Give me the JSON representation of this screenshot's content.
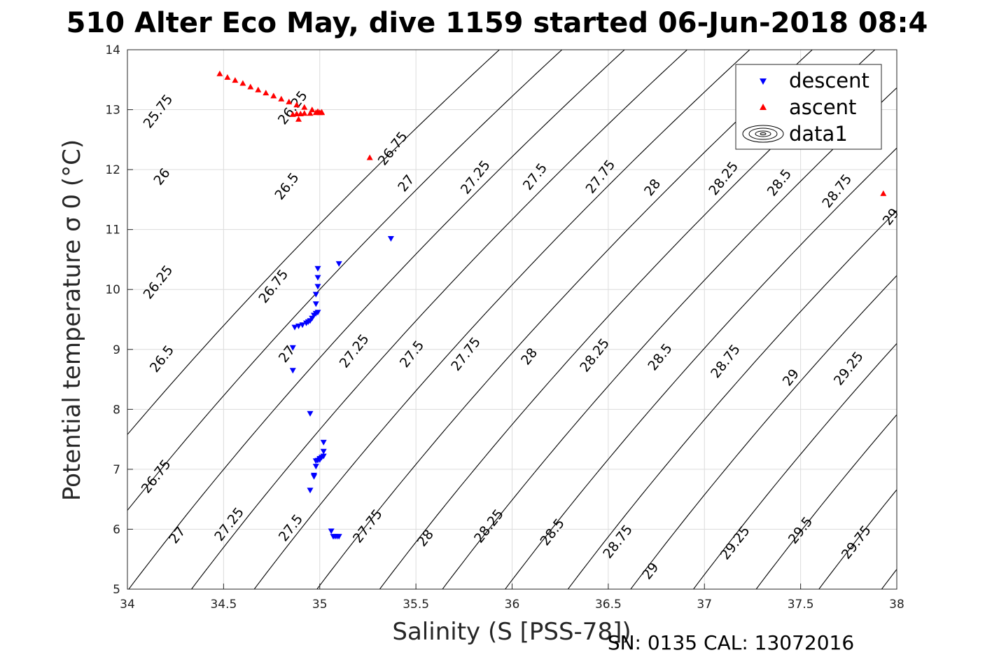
{
  "figure": {
    "title": "510 Alter Eco May, dive 1159 started 06-Jun-2018 08:4",
    "footer": "SN: 0135  CAL: 13072016"
  },
  "chart_data": {
    "type": "scatter",
    "title": "510 Alter Eco May, dive 1159 started 06-Jun-2018 08:4",
    "xlabel": "Salinity (S [PSS-78])",
    "ylabel": "Potential temperature σ 0 (°C)",
    "xlim": [
      34,
      38
    ],
    "ylim": [
      5,
      14
    ],
    "xticks": [
      "34",
      "34.5",
      "35",
      "35.5",
      "36",
      "36.5",
      "37",
      "37.5",
      "38"
    ],
    "yticks": [
      "5",
      "6",
      "7",
      "8",
      "9",
      "10",
      "11",
      "12",
      "13",
      "14"
    ],
    "grid": true,
    "legend": {
      "placement": "top-right",
      "entries": [
        "descent",
        "ascent",
        "data1"
      ]
    },
    "colors": {
      "descent": "#0000ff",
      "ascent": "#ff0000",
      "contour": "#000000",
      "grid": "#dcdcdc"
    },
    "series": [
      {
        "name": "descent",
        "marker": "triangle-down",
        "x": [
          35.37,
          35.1,
          34.99,
          34.99,
          34.99,
          34.98,
          34.98,
          34.99,
          34.98,
          34.97,
          34.96,
          34.95,
          34.94,
          34.93,
          34.91,
          34.89,
          34.87,
          34.86,
          34.86,
          34.95,
          35.02,
          35.02,
          35.02,
          35.01,
          35.0,
          35.0,
          34.99,
          34.98,
          34.98,
          34.97,
          34.97,
          34.95,
          35.06,
          35.07,
          35.08,
          35.09,
          35.1
        ],
        "y": [
          10.85,
          10.43,
          10.35,
          10.2,
          10.05,
          9.92,
          9.76,
          9.62,
          9.6,
          9.57,
          9.52,
          9.48,
          9.46,
          9.44,
          9.41,
          9.39,
          9.37,
          9.03,
          8.65,
          7.93,
          7.45,
          7.3,
          7.22,
          7.2,
          7.18,
          7.16,
          7.15,
          7.14,
          7.05,
          6.9,
          6.88,
          6.65,
          5.97,
          5.88,
          5.88,
          5.88,
          5.88
        ]
      },
      {
        "name": "ascent",
        "marker": "triangle-up",
        "x": [
          34.48,
          34.52,
          34.56,
          34.6,
          34.64,
          34.68,
          34.72,
          34.76,
          34.8,
          34.84,
          34.88,
          34.92,
          34.96,
          34.99,
          35.01,
          35.01,
          35.0,
          34.98,
          34.95,
          34.92,
          34.9,
          34.88,
          34.86,
          34.89,
          35.26,
          37.93
        ],
        "y": [
          13.6,
          13.54,
          13.49,
          13.44,
          13.38,
          13.33,
          13.28,
          13.23,
          13.18,
          13.13,
          13.08,
          13.04,
          13.0,
          12.97,
          12.96,
          12.95,
          12.95,
          12.95,
          12.94,
          12.94,
          12.93,
          12.93,
          12.92,
          12.84,
          12.2,
          11.6
        ]
      }
    ],
    "density_levels": [
      25.75,
      26,
      26.25,
      26.5,
      26.75,
      27,
      27.25,
      27.5,
      27.75,
      28,
      28.25,
      28.5,
      28.75,
      29,
      29.25,
      29.5,
      29.75
    ],
    "contour_labels": [
      {
        "text": "25.75",
        "s": 34.16,
        "t": 12.97
      },
      {
        "text": "26.25",
        "s": 34.86,
        "t": 13.03
      },
      {
        "text": "26.75",
        "s": 35.38,
        "t": 12.35
      },
      {
        "text": "26",
        "s": 34.18,
        "t": 11.88
      },
      {
        "text": "26.5",
        "s": 34.83,
        "t": 11.72
      },
      {
        "text": "27",
        "s": 35.45,
        "t": 11.77
      },
      {
        "text": "27.25",
        "s": 35.81,
        "t": 11.87
      },
      {
        "text": "27.5",
        "s": 36.12,
        "t": 11.88
      },
      {
        "text": "27.75",
        "s": 36.46,
        "t": 11.88
      },
      {
        "text": "28",
        "s": 36.73,
        "t": 11.7
      },
      {
        "text": "28.25",
        "s": 37.1,
        "t": 11.85
      },
      {
        "text": "28.5",
        "s": 37.39,
        "t": 11.78
      },
      {
        "text": "28.75",
        "s": 37.69,
        "t": 11.64
      },
      {
        "text": "29",
        "s": 37.97,
        "t": 11.21
      },
      {
        "text": "26.25",
        "s": 34.16,
        "t": 10.12
      },
      {
        "text": "26.75",
        "s": 34.76,
        "t": 10.05
      },
      {
        "text": "26.5",
        "s": 34.18,
        "t": 8.84
      },
      {
        "text": "27",
        "s": 34.83,
        "t": 8.92
      },
      {
        "text": "27.25",
        "s": 35.18,
        "t": 8.97
      },
      {
        "text": "27.5",
        "s": 35.48,
        "t": 8.92
      },
      {
        "text": "27.75",
        "s": 35.76,
        "t": 8.92
      },
      {
        "text": "28",
        "s": 36.09,
        "t": 8.88
      },
      {
        "text": "28.25",
        "s": 36.43,
        "t": 8.9
      },
      {
        "text": "28.5",
        "s": 36.77,
        "t": 8.87
      },
      {
        "text": "28.75",
        "s": 37.11,
        "t": 8.8
      },
      {
        "text": "29",
        "s": 37.45,
        "t": 8.53
      },
      {
        "text": "29.25",
        "s": 37.75,
        "t": 8.68
      },
      {
        "text": "26.75",
        "s": 34.15,
        "t": 6.88
      },
      {
        "text": "27",
        "s": 34.26,
        "t": 5.9
      },
      {
        "text": "27.25",
        "s": 34.53,
        "t": 6.08
      },
      {
        "text": "27.5",
        "s": 34.85,
        "t": 6.02
      },
      {
        "text": "27.75",
        "s": 35.25,
        "t": 6.05
      },
      {
        "text": "28",
        "s": 35.55,
        "t": 5.85
      },
      {
        "text": "28.25",
        "s": 35.88,
        "t": 6.05
      },
      {
        "text": "28.5",
        "s": 36.21,
        "t": 5.95
      },
      {
        "text": "28.75",
        "s": 36.55,
        "t": 5.79
      },
      {
        "text": "29",
        "s": 36.72,
        "t": 5.3
      },
      {
        "text": "29.25",
        "s": 37.16,
        "t": 5.77
      },
      {
        "text": "29.5",
        "s": 37.5,
        "t": 5.98
      },
      {
        "text": "29.75",
        "s": 37.79,
        "t": 5.78
      }
    ]
  }
}
